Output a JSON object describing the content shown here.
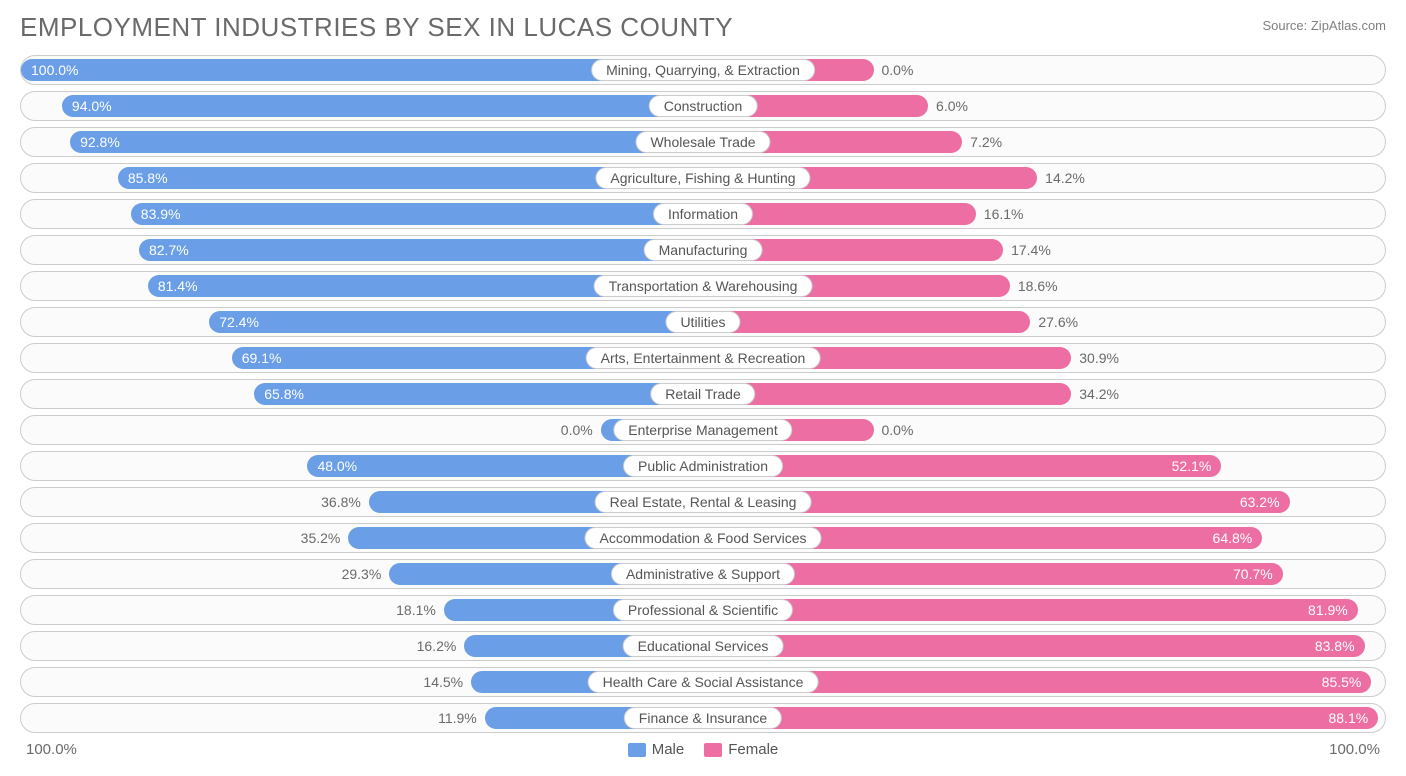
{
  "title": "EMPLOYMENT INDUSTRIES BY SEX IN LUCAS COUNTY",
  "source": "Source: ZipAtlas.com",
  "colors": {
    "male": "#6a9ee6",
    "female": "#ec6ea2",
    "text": "#6a6a6a",
    "border": "#cccccc",
    "row_bg": "#fbfbfb",
    "label_bg": "#ffffff"
  },
  "axis": {
    "left_end": "100.0%",
    "right_end": "100.0%"
  },
  "legend": {
    "male": "Male",
    "female": "Female"
  },
  "value_fontsize": 14,
  "title_fontsize": 26,
  "inside_threshold": 55,
  "rows": [
    {
      "label": "Mining, Quarrying, & Extraction",
      "male": 100.0,
      "female": 0.0,
      "male_bar": 100.0,
      "female_bar": 25.0
    },
    {
      "label": "Construction",
      "male": 94.0,
      "female": 6.0,
      "male_bar": 94.0,
      "female_bar": 33.0
    },
    {
      "label": "Wholesale Trade",
      "male": 92.8,
      "female": 7.2,
      "male_bar": 92.8,
      "female_bar": 38.0
    },
    {
      "label": "Agriculture, Fishing & Hunting",
      "male": 85.8,
      "female": 14.2,
      "male_bar": 85.8,
      "female_bar": 49.0
    },
    {
      "label": "Information",
      "male": 83.9,
      "female": 16.1,
      "male_bar": 83.9,
      "female_bar": 40.0
    },
    {
      "label": "Manufacturing",
      "male": 82.7,
      "female": 17.4,
      "male_bar": 82.7,
      "female_bar": 44.0
    },
    {
      "label": "Transportation & Warehousing",
      "male": 81.4,
      "female": 18.6,
      "male_bar": 81.4,
      "female_bar": 45.0
    },
    {
      "label": "Utilities",
      "male": 72.4,
      "female": 27.6,
      "male_bar": 72.4,
      "female_bar": 48.0
    },
    {
      "label": "Arts, Entertainment & Recreation",
      "male": 69.1,
      "female": 30.9,
      "male_bar": 69.1,
      "female_bar": 54.0
    },
    {
      "label": "Retail Trade",
      "male": 65.8,
      "female": 34.2,
      "male_bar": 65.8,
      "female_bar": 54.0
    },
    {
      "label": "Enterprise Management",
      "male": 0.0,
      "female": 0.0,
      "male_bar": 15.0,
      "female_bar": 25.0
    },
    {
      "label": "Public Administration",
      "male": 48.0,
      "female": 52.1,
      "male_bar": 58.0,
      "female_bar": 76.0
    },
    {
      "label": "Real Estate, Rental & Leasing",
      "male": 36.8,
      "female": 63.2,
      "male_bar": 49.0,
      "female_bar": 86.0
    },
    {
      "label": "Accommodation & Food Services",
      "male": 35.2,
      "female": 64.8,
      "male_bar": 52.0,
      "female_bar": 82.0
    },
    {
      "label": "Administrative & Support",
      "male": 29.3,
      "female": 70.7,
      "male_bar": 46.0,
      "female_bar": 85.0
    },
    {
      "label": "Professional & Scientific",
      "male": 18.1,
      "female": 81.9,
      "male_bar": 38.0,
      "female_bar": 96.0
    },
    {
      "label": "Educational Services",
      "male": 16.2,
      "female": 83.8,
      "male_bar": 35.0,
      "female_bar": 97.0
    },
    {
      "label": "Health Care & Social Assistance",
      "male": 14.5,
      "female": 85.5,
      "male_bar": 34.0,
      "female_bar": 98.0
    },
    {
      "label": "Finance & Insurance",
      "male": 11.9,
      "female": 88.1,
      "male_bar": 32.0,
      "female_bar": 99.0
    }
  ]
}
